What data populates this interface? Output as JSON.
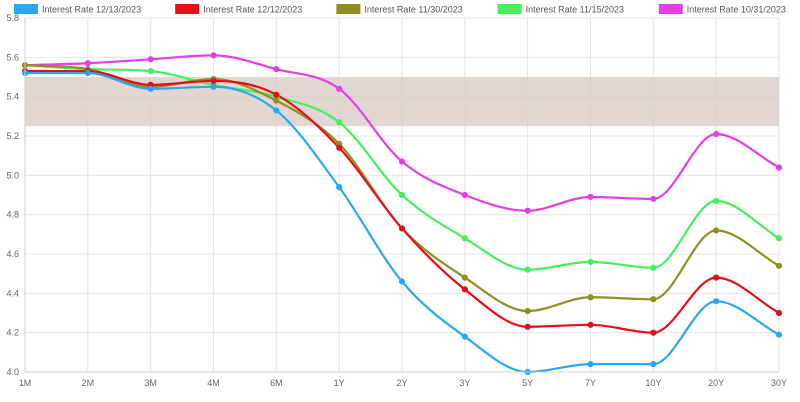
{
  "chart_data": {
    "type": "line",
    "categories": [
      "1M",
      "2M",
      "3M",
      "4M",
      "6M",
      "1Y",
      "2Y",
      "3Y",
      "5Y",
      "7Y",
      "10Y",
      "20Y",
      "30Y"
    ],
    "ylim": [
      4.0,
      5.8
    ],
    "yticks": [
      "4.0",
      "4.2",
      "4.4",
      "4.6",
      "4.8",
      "5.0",
      "5.2",
      "5.4",
      "5.6",
      "5.8"
    ],
    "grid": true,
    "legend_position": "top",
    "band": {
      "from": 5.25,
      "to": 5.5,
      "color": "#d9ccc6"
    },
    "series": [
      {
        "name": "Interest Rate 12/13/2023",
        "color": "#29a8f0",
        "values": [
          5.52,
          5.52,
          5.44,
          5.45,
          5.33,
          4.94,
          4.46,
          4.18,
          4.0,
          4.04,
          4.04,
          4.36,
          4.19
        ]
      },
      {
        "name": "Interest Rate 12/12/2023",
        "color": "#e3101a",
        "values": [
          5.53,
          5.53,
          5.46,
          5.48,
          5.41,
          5.14,
          4.73,
          4.42,
          4.23,
          4.24,
          4.2,
          4.48,
          4.3
        ]
      },
      {
        "name": "Interest Rate 11/30/2023",
        "color": "#8f8f22",
        "values": [
          5.56,
          5.54,
          5.45,
          5.49,
          5.38,
          5.16,
          4.73,
          4.48,
          4.31,
          4.38,
          4.37,
          4.72,
          4.54
        ]
      },
      {
        "name": "Interest Rate 11/15/2023",
        "color": "#46f05a",
        "values": [
          5.56,
          5.54,
          5.53,
          5.46,
          5.4,
          5.27,
          4.9,
          4.68,
          4.52,
          4.56,
          4.53,
          4.87,
          4.68
        ]
      },
      {
        "name": "Interest Rate 10/31/2023",
        "color": "#e43ee8",
        "values": [
          5.56,
          5.57,
          5.59,
          5.61,
          5.54,
          5.44,
          5.07,
          4.9,
          4.82,
          4.89,
          4.88,
          5.21,
          5.04
        ]
      }
    ]
  }
}
